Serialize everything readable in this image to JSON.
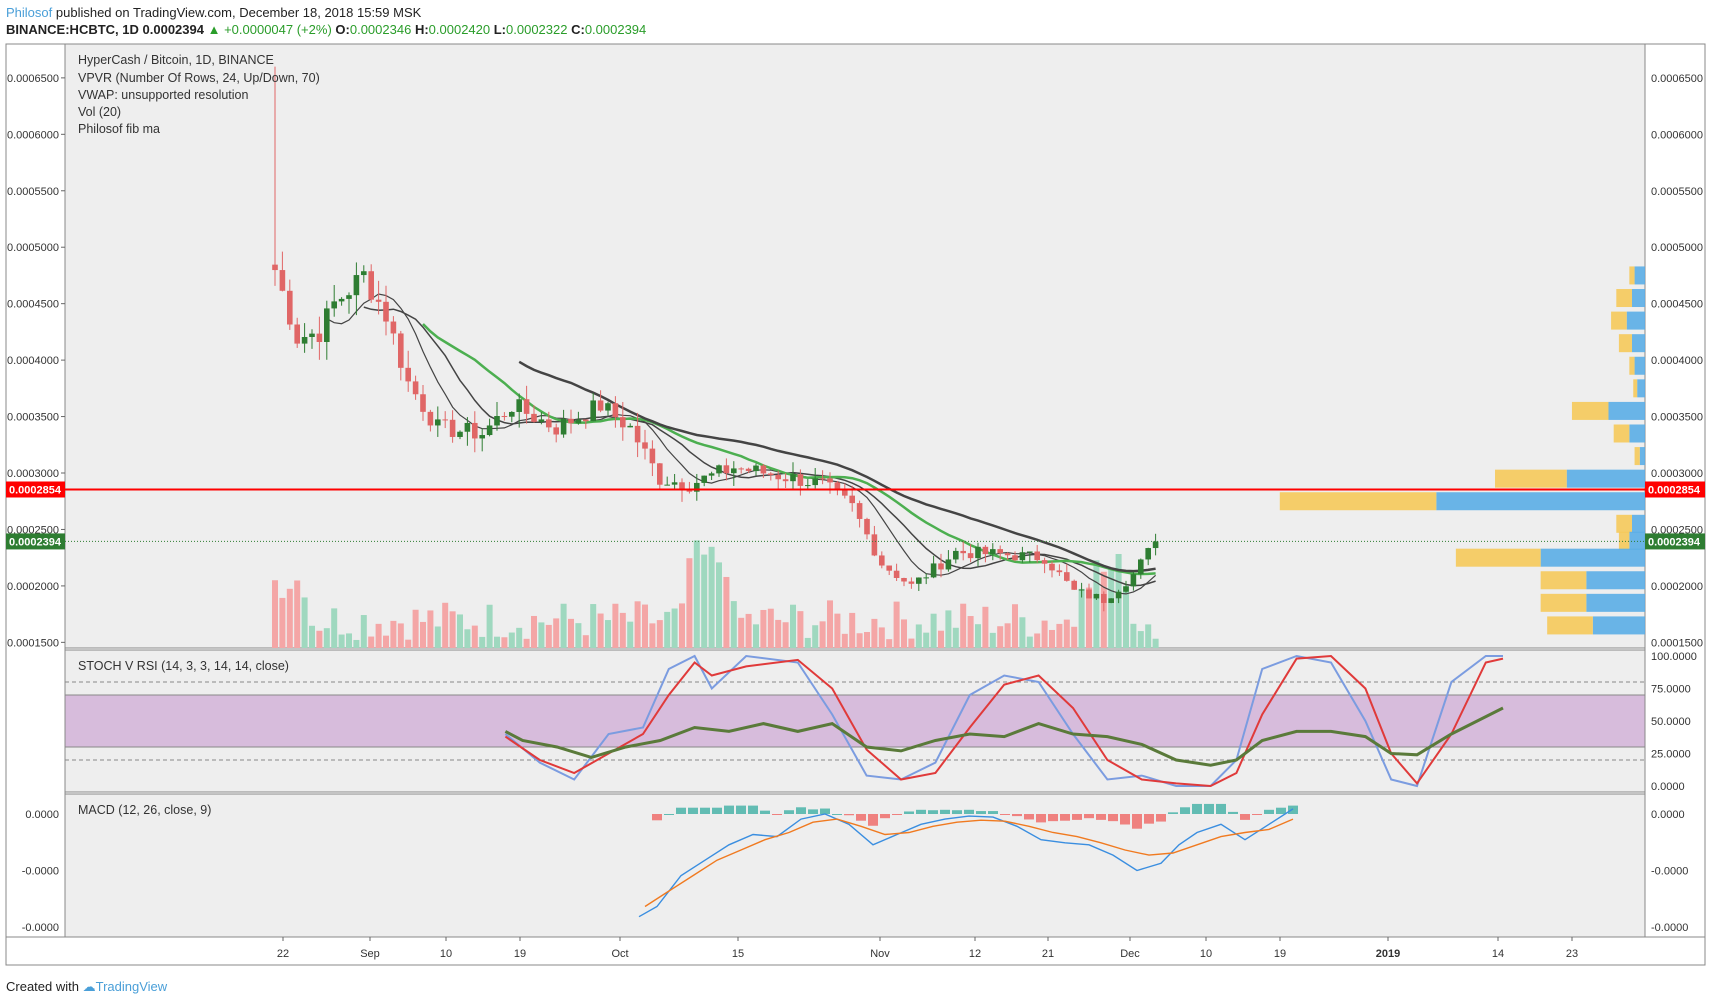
{
  "header": {
    "author": "Philosof",
    "published": "published on TradingView.com, December 18, 2018 15:59 MSK",
    "symbol": "BINANCE:HCBTC, 1D",
    "last": "0.0002394",
    "change": "▲ +0.0000047 (+2%)",
    "o_label": "O:",
    "o_value": "0.0002346",
    "h_label": "H:",
    "h_value": "0.0002420",
    "l_label": "L:",
    "l_value": "0.0002322",
    "c_label": "C:",
    "c_value": "0.0002394"
  },
  "footer": {
    "created": "Created with",
    "brand": "TradingView"
  },
  "colors": {
    "bg": "#eeeeee",
    "up": "#2e7d32",
    "down": "#e06666",
    "vol_up": "#9fd8bf",
    "vol_down": "#f4a6a6",
    "ma_green": "#4caf50",
    "ma_dark": "#444444",
    "stoch_k": "#7b9ce0",
    "stoch_d": "#e03a3a",
    "rsi": "#5a7a3a",
    "macd": "#3a8ee0",
    "signal": "#f07a20",
    "hline": "#ff0000",
    "vpvr_up": "#5aade6",
    "vpvr_down": "#f5c95a"
  },
  "chart_data": {
    "type": "candlestick",
    "title": "HyperCash / Bitcoin, 1D, BINANCE",
    "indicators": [
      "VPVR (Number Of Rows, 24, Up/Down, 70)",
      "VWAP: unsupported resolution",
      "Vol (20)",
      "Philosof fib ma"
    ],
    "x_ticks": [
      "22",
      "Sep",
      "10",
      "19",
      "Oct",
      "15",
      "Nov",
      "12",
      "21",
      "Dec",
      "10",
      "19",
      "2019",
      "14",
      "23"
    ],
    "y_ticks": [
      "0.0006500",
      "0.0006000",
      "0.0005500",
      "0.0005000",
      "0.0004500",
      "0.0004000",
      "0.0003500",
      "0.0003000",
      "0.0002500",
      "0.0002000",
      "0.0001500"
    ],
    "ylim": [
      0.000145,
      0.00068
    ],
    "horizontal_line": {
      "value": 0.0002854,
      "label": "0.0002854"
    },
    "last_price": {
      "value": 0.0002394,
      "label": "0.0002394"
    },
    "price_keypoints": [
      [
        0,
        0.00048
      ],
      [
        3,
        0.00042
      ],
      [
        6,
        0.000425
      ],
      [
        8,
        0.00045
      ],
      [
        12,
        0.000475
      ],
      [
        15,
        0.00044
      ],
      [
        18,
        0.00038
      ],
      [
        22,
        0.00034
      ],
      [
        28,
        0.000335
      ],
      [
        32,
        0.00036
      ],
      [
        38,
        0.00034
      ],
      [
        44,
        0.00036
      ],
      [
        48,
        0.00034
      ],
      [
        52,
        0.000295
      ],
      [
        56,
        0.00029
      ],
      [
        62,
        0.000305
      ],
      [
        68,
        0.000298
      ],
      [
        74,
        0.00029
      ],
      [
        78,
        0.00027
      ],
      [
        82,
        0.00022
      ],
      [
        86,
        0.0002
      ],
      [
        92,
        0.00023
      ],
      [
        98,
        0.000228
      ],
      [
        104,
        0.000225
      ],
      [
        108,
        0.000195
      ],
      [
        112,
        0.000188
      ],
      [
        116,
        0.00021
      ],
      [
        119,
        0.0002394
      ]
    ],
    "vpvr": [
      {
        "price": 0.000475,
        "up": 8e-07,
        "down": 4e-07
      },
      {
        "price": 0.000455,
        "up": 1e-06,
        "down": 1.2e-06
      },
      {
        "price": 0.000435,
        "up": 1.4e-06,
        "down": 1.2e-06
      },
      {
        "price": 0.000415,
        "up": 1e-06,
        "down": 1e-06
      },
      {
        "price": 0.000395,
        "up": 8e-07,
        "down": 4e-07
      },
      {
        "price": 0.000375,
        "up": 6e-07,
        "down": 3e-07
      },
      {
        "price": 0.000355,
        "up": 2.8e-06,
        "down": 2.8e-06
      },
      {
        "price": 0.000335,
        "up": 1.2e-06,
        "down": 1.2e-06
      },
      {
        "price": 0.000315,
        "up": 4e-07,
        "down": 4e-07
      },
      {
        "price": 0.000295,
        "up": 6e-06,
        "down": 5.5e-06
      },
      {
        "price": 0.000275,
        "up": 1.6e-05,
        "down": 1.2e-05
      },
      {
        "price": 0.000255,
        "up": 1e-06,
        "down": 1.2e-06
      },
      {
        "price": 0.00024,
        "up": 1.2e-06,
        "down": 8e-07
      },
      {
        "price": 0.000225,
        "up": 8e-06,
        "down": 6.5e-06
      },
      {
        "price": 0.000205,
        "up": 4.5e-06,
        "down": 3.5e-06
      },
      {
        "price": 0.000185,
        "up": 4.5e-06,
        "down": 3.5e-06
      },
      {
        "price": 0.000165,
        "up": 4e-06,
        "down": 3.5e-06
      }
    ],
    "stoch_rsi": {
      "title": "STOCH V RSI (14, 3, 3, 14, 14, close)",
      "y_ticks": [
        "100.0000",
        "75.0000",
        "50.0000",
        "25.0000",
        "0.0000"
      ],
      "band": [
        30,
        70
      ],
      "levels": [
        80,
        20
      ],
      "k": [
        [
          14,
          40
        ],
        [
          18,
          18
        ],
        [
          22,
          5
        ],
        [
          26,
          40
        ],
        [
          30,
          45
        ],
        [
          33,
          90
        ],
        [
          36,
          100
        ],
        [
          38,
          75
        ],
        [
          42,
          100
        ],
        [
          48,
          95
        ],
        [
          52,
          55
        ],
        [
          56,
          8
        ],
        [
          60,
          5
        ],
        [
          64,
          18
        ],
        [
          68,
          70
        ],
        [
          72,
          85
        ],
        [
          76,
          80
        ],
        [
          80,
          40
        ],
        [
          84,
          5
        ],
        [
          88,
          8
        ],
        [
          92,
          0
        ],
        [
          96,
          0
        ],
        [
          99,
          20
        ],
        [
          102,
          90
        ],
        [
          106,
          100
        ],
        [
          110,
          95
        ],
        [
          114,
          50
        ],
        [
          117,
          5
        ],
        [
          120,
          0
        ],
        [
          124,
          80
        ],
        [
          128,
          100
        ],
        [
          130,
          100
        ]
      ],
      "d": [
        [
          14,
          38
        ],
        [
          18,
          20
        ],
        [
          22,
          10
        ],
        [
          26,
          25
        ],
        [
          30,
          40
        ],
        [
          33,
          70
        ],
        [
          36,
          95
        ],
        [
          38,
          85
        ],
        [
          42,
          92
        ],
        [
          48,
          97
        ],
        [
          52,
          75
        ],
        [
          56,
          28
        ],
        [
          60,
          5
        ],
        [
          64,
          10
        ],
        [
          68,
          45
        ],
        [
          72,
          78
        ],
        [
          76,
          85
        ],
        [
          80,
          60
        ],
        [
          84,
          20
        ],
        [
          88,
          5
        ],
        [
          92,
          2
        ],
        [
          96,
          0
        ],
        [
          99,
          10
        ],
        [
          102,
          55
        ],
        [
          106,
          98
        ],
        [
          110,
          100
        ],
        [
          114,
          75
        ],
        [
          117,
          25
        ],
        [
          120,
          2
        ],
        [
          124,
          40
        ],
        [
          128,
          95
        ],
        [
          130,
          98
        ]
      ],
      "rsi": [
        [
          14,
          42
        ],
        [
          16,
          35
        ],
        [
          20,
          30
        ],
        [
          24,
          22
        ],
        [
          28,
          30
        ],
        [
          32,
          35
        ],
        [
          36,
          45
        ],
        [
          40,
          42
        ],
        [
          44,
          48
        ],
        [
          48,
          42
        ],
        [
          52,
          48
        ],
        [
          56,
          30
        ],
        [
          60,
          27
        ],
        [
          64,
          35
        ],
        [
          68,
          40
        ],
        [
          72,
          38
        ],
        [
          76,
          48
        ],
        [
          80,
          40
        ],
        [
          84,
          38
        ],
        [
          88,
          32
        ],
        [
          92,
          20
        ],
        [
          96,
          16
        ],
        [
          99,
          20
        ],
        [
          102,
          35
        ],
        [
          106,
          42
        ],
        [
          110,
          42
        ],
        [
          114,
          38
        ],
        [
          117,
          25
        ],
        [
          120,
          24
        ],
        [
          124,
          40
        ],
        [
          127,
          50
        ],
        [
          130,
          60
        ]
      ]
    },
    "macd": {
      "title": "MACD (12, 26, close, 9)",
      "y_ticks": [
        "0.0000",
        "-0.0000",
        "-0.0000"
      ],
      "macd_line": [
        [
          29,
          -100
        ],
        [
          32,
          -90
        ],
        [
          36,
          -60
        ],
        [
          40,
          -45
        ],
        [
          44,
          -30
        ],
        [
          48,
          -20
        ],
        [
          52,
          -22
        ],
        [
          56,
          -5
        ],
        [
          60,
          0
        ],
        [
          64,
          -10
        ],
        [
          68,
          -30
        ],
        [
          72,
          -20
        ],
        [
          76,
          -10
        ],
        [
          80,
          -5
        ],
        [
          84,
          -2
        ],
        [
          88,
          -3
        ],
        [
          92,
          -12
        ],
        [
          96,
          -25
        ],
        [
          100,
          -28
        ],
        [
          104,
          -30
        ],
        [
          108,
          -40
        ],
        [
          112,
          -55
        ],
        [
          116,
          -48
        ],
        [
          119,
          -30
        ],
        [
          122,
          -18
        ],
        [
          126,
          -10
        ],
        [
          130,
          -25
        ],
        [
          134,
          -10
        ],
        [
          138,
          5
        ]
      ],
      "signal_line": [
        [
          30,
          -90
        ],
        [
          34,
          -75
        ],
        [
          38,
          -60
        ],
        [
          42,
          -45
        ],
        [
          46,
          -35
        ],
        [
          50,
          -25
        ],
        [
          54,
          -18
        ],
        [
          58,
          -8
        ],
        [
          62,
          -5
        ],
        [
          66,
          -12
        ],
        [
          70,
          -20
        ],
        [
          74,
          -18
        ],
        [
          78,
          -12
        ],
        [
          82,
          -8
        ],
        [
          86,
          -6
        ],
        [
          90,
          -7
        ],
        [
          94,
          -12
        ],
        [
          98,
          -18
        ],
        [
          102,
          -22
        ],
        [
          106,
          -28
        ],
        [
          110,
          -35
        ],
        [
          114,
          -40
        ],
        [
          118,
          -38
        ],
        [
          122,
          -30
        ],
        [
          126,
          -22
        ],
        [
          130,
          -18
        ],
        [
          134,
          -15
        ],
        [
          138,
          -5
        ]
      ]
    }
  }
}
